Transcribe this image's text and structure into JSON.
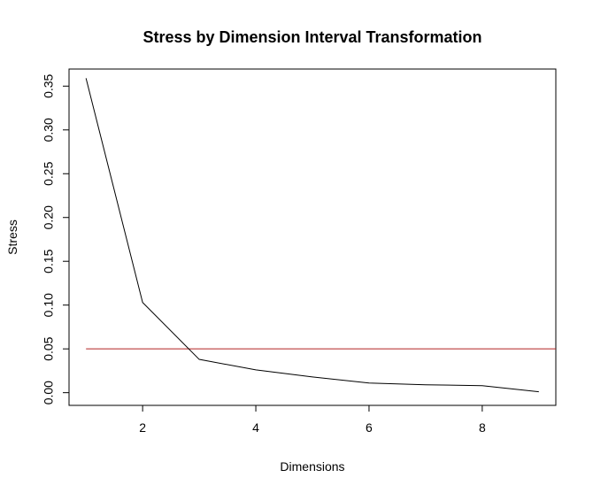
{
  "chart_data": {
    "type": "line",
    "title": "Stress by Dimension Interval Transformation",
    "xlabel": "Dimensions",
    "ylabel": "Stress",
    "xlim": [
      0.7,
      9.3
    ],
    "ylim": [
      -0.0145,
      0.3695
    ],
    "x_ticks": [
      2,
      4,
      6,
      8
    ],
    "x_tick_labels": [
      "2",
      "4",
      "6",
      "8"
    ],
    "y_ticks": [
      0.0,
      0.05,
      0.1,
      0.15,
      0.2,
      0.25,
      0.3,
      0.35
    ],
    "y_tick_labels": [
      "0.00",
      "0.05",
      "0.10",
      "0.15",
      "0.20",
      "0.25",
      "0.30",
      "0.35"
    ],
    "grid": false,
    "series": [
      {
        "x": [
          1,
          2,
          3,
          4,
          5,
          6,
          7,
          8,
          9
        ],
        "y": [
          0.359,
          0.103,
          0.038,
          0.026,
          0.018,
          0.011,
          0.009,
          0.008,
          0.001
        ],
        "color": "#000000"
      }
    ],
    "reference_lines": [
      {
        "type": "horizontal",
        "y": 0.05,
        "x_from": 1,
        "x_to": 9.3,
        "color": "#b22222"
      }
    ]
  }
}
